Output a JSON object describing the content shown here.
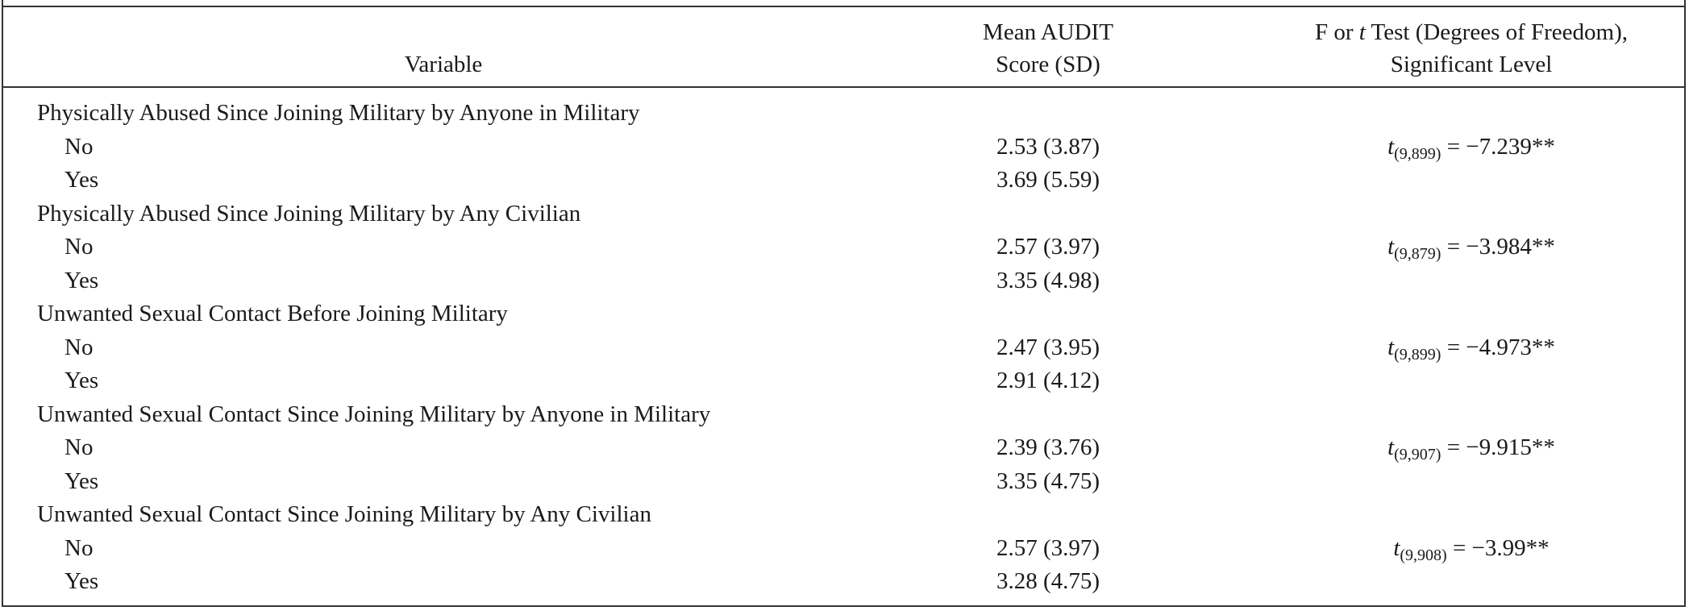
{
  "header": {
    "variable": "Variable",
    "mean_line1": "Mean AUDIT",
    "mean_line2": "Score (SD)",
    "test_pre": "F or ",
    "test_italic": "t",
    "test_post": " Test (Degrees of Freedom),",
    "test_line2": "Significant Level"
  },
  "rows": [
    {
      "label": "Physically Abused Since Joining Military by Anyone in Military",
      "indent": false,
      "mean": "",
      "test": null
    },
    {
      "label": "No",
      "indent": true,
      "mean": "2.53 (3.87)",
      "test": {
        "t": "t",
        "df": "(9,899)",
        "value": " = −7.239**"
      }
    },
    {
      "label": "Yes",
      "indent": true,
      "mean": "3.69 (5.59)",
      "test": null
    },
    {
      "label": "Physically Abused Since Joining Military by Any Civilian",
      "indent": false,
      "mean": "",
      "test": null
    },
    {
      "label": "No",
      "indent": true,
      "mean": "2.57 (3.97)",
      "test": {
        "t": "t",
        "df": "(9,879)",
        "value": " = −3.984**"
      }
    },
    {
      "label": "Yes",
      "indent": true,
      "mean": "3.35 (4.98)",
      "test": null
    },
    {
      "label": "Unwanted Sexual Contact Before Joining Military",
      "indent": false,
      "mean": "",
      "test": null
    },
    {
      "label": "No",
      "indent": true,
      "mean": "2.47 (3.95)",
      "test": {
        "t": "t",
        "df": "(9,899)",
        "value": " = −4.973**"
      }
    },
    {
      "label": "Yes",
      "indent": true,
      "mean": "2.91 (4.12)",
      "test": null
    },
    {
      "label": "Unwanted Sexual Contact Since Joining Military by Anyone in Military",
      "indent": false,
      "mean": "",
      "test": null
    },
    {
      "label": "No",
      "indent": true,
      "mean": "2.39 (3.76)",
      "test": {
        "t": "t",
        "df": "(9,907)",
        "value": " = −9.915**"
      }
    },
    {
      "label": "Yes",
      "indent": true,
      "mean": "3.35 (4.75)",
      "test": null
    },
    {
      "label": "Unwanted Sexual Contact Since Joining Military by Any Civilian",
      "indent": false,
      "mean": "",
      "test": null
    },
    {
      "label": "No",
      "indent": true,
      "mean": "2.57 (3.97)",
      "test": {
        "t": "t",
        "df": "(9,908)",
        "value": " = −3.99**"
      }
    },
    {
      "label": "Yes",
      "indent": true,
      "mean": "3.28 (4.75)",
      "test": null
    }
  ]
}
